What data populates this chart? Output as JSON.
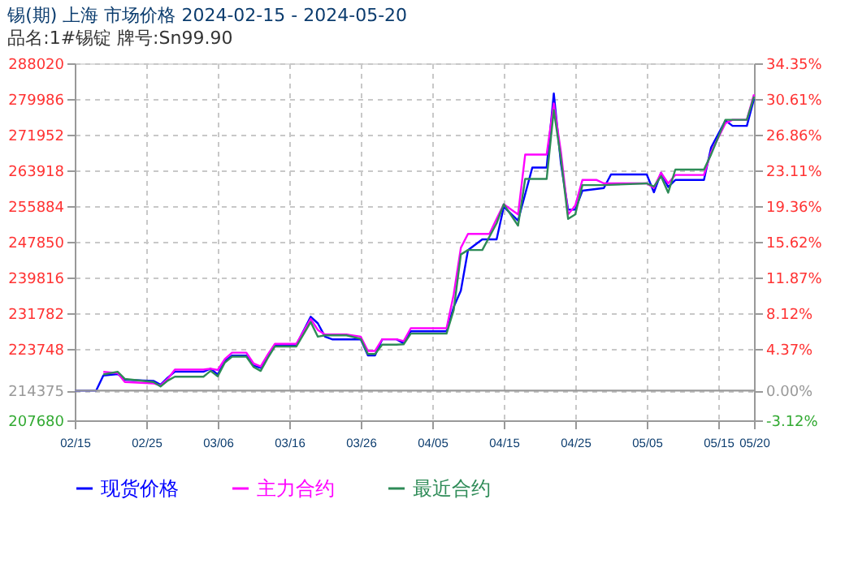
{
  "chart_data": {
    "type": "line",
    "title": "锡(期) 上海 市场价格 2024-02-15 - 2024-05-20",
    "subtitle": "品名:1#锡锭 牌号:Sn99.90",
    "xlim": [
      "2024-02-15",
      "2024-05-20"
    ],
    "xticks": [
      {
        "value": "2024-02-15",
        "label": "02/15"
      },
      {
        "value": "2024-02-25",
        "label": "02/25"
      },
      {
        "value": "2024-03-06",
        "label": "03/06"
      },
      {
        "value": "2024-03-16",
        "label": "03/16"
      },
      {
        "value": "2024-03-26",
        "label": "03/26"
      },
      {
        "value": "2024-04-05",
        "label": "04/05"
      },
      {
        "value": "2024-04-15",
        "label": "04/15"
      },
      {
        "value": "2024-04-25",
        "label": "04/25"
      },
      {
        "value": "2024-05-05",
        "label": "05/05"
      },
      {
        "value": "2024-05-15",
        "label": "05/15"
      },
      {
        "value": "2024-05-20",
        "label": "05/20"
      }
    ],
    "ylim": [
      207680,
      288020
    ],
    "yticks": [
      207680,
      214375,
      223748,
      231782,
      239816,
      247850,
      255884,
      263918,
      271952,
      279986,
      288020
    ],
    "y2lim": [
      -3.12,
      34.35
    ],
    "y2ticks": [
      {
        "value": -3.12,
        "label": "-3.12%"
      },
      {
        "value": 0,
        "label": "0.00%"
      },
      {
        "value": 4.37,
        "label": "4.37%"
      },
      {
        "value": 8.12,
        "label": "8.12%"
      },
      {
        "value": 11.87,
        "label": "11.87%"
      },
      {
        "value": 15.62,
        "label": "15.62%"
      },
      {
        "value": 19.36,
        "label": "19.36%"
      },
      {
        "value": 23.11,
        "label": "23.11%"
      },
      {
        "value": 26.86,
        "label": "26.86%"
      },
      {
        "value": 30.61,
        "label": "30.61%"
      },
      {
        "value": 34.35,
        "label": "34.35%"
      }
    ],
    "ref_lines": [
      {
        "axis": "y",
        "value": 214375,
        "color": "#999999"
      }
    ],
    "grid": true,
    "legend": "bottom",
    "marker": "none",
    "line_style": "solid",
    "series": [
      {
        "name": "现货价格",
        "color": "#0000ff",
        "x": [
          "2024-02-15",
          "2024-02-18",
          "2024-02-19",
          "2024-02-21",
          "2024-02-22",
          "2024-02-26",
          "2024-02-27",
          "2024-02-28",
          "2024-02-29",
          "2024-03-04",
          "2024-03-05",
          "2024-03-06",
          "2024-03-07",
          "2024-03-08",
          "2024-03-10",
          "2024-03-11",
          "2024-03-12",
          "2024-03-13",
          "2024-03-14",
          "2024-03-17",
          "2024-03-19",
          "2024-03-20",
          "2024-03-21",
          "2024-03-22",
          "2024-03-26",
          "2024-03-27",
          "2024-03-28",
          "2024-03-29",
          "2024-03-31",
          "2024-04-01",
          "2024-04-02",
          "2024-04-07",
          "2024-04-08",
          "2024-04-09",
          "2024-04-10",
          "2024-04-12",
          "2024-04-14",
          "2024-04-15",
          "2024-04-17",
          "2024-04-19",
          "2024-04-21",
          "2024-04-22",
          "2024-04-23",
          "2024-04-24",
          "2024-04-25",
          "2024-04-26",
          "2024-04-29",
          "2024-04-30",
          "2024-05-05",
          "2024-05-06",
          "2024-05-07",
          "2024-05-08",
          "2024-05-09",
          "2024-05-13",
          "2024-05-14",
          "2024-05-16",
          "2024-05-17",
          "2024-05-19",
          "2024-05-20"
        ],
        "values": [
          214375,
          214375,
          217780,
          218100,
          216800,
          216550,
          215700,
          217300,
          218620,
          218620,
          219300,
          218000,
          221000,
          222270,
          222270,
          220000,
          219500,
          222270,
          224710,
          224710,
          231000,
          229500,
          226500,
          225900,
          225900,
          222270,
          222270,
          225910,
          225910,
          225000,
          227730,
          227730,
          233200,
          236850,
          245970,
          248410,
          248410,
          255710,
          252640,
          264570,
          264570,
          281240,
          265410,
          255090,
          255090,
          259350,
          259940,
          263000,
          263000,
          258990,
          263370,
          260190,
          261760,
          261760,
          269060,
          275150,
          273940,
          273940,
          280000
        ]
      },
      {
        "name": "主力合约",
        "color": "#ff00ff",
        "x": [
          "2024-02-19",
          "2024-02-21",
          "2024-02-22",
          "2024-02-26",
          "2024-02-27",
          "2024-02-28",
          "2024-02-29",
          "2024-03-04",
          "2024-03-05",
          "2024-03-06",
          "2024-03-07",
          "2024-03-08",
          "2024-03-10",
          "2024-03-11",
          "2024-03-12",
          "2024-03-13",
          "2024-03-14",
          "2024-03-17",
          "2024-03-19",
          "2024-03-20",
          "2024-03-21",
          "2024-03-24",
          "2024-03-26",
          "2024-03-27",
          "2024-03-28",
          "2024-03-29",
          "2024-03-31",
          "2024-04-01",
          "2024-04-02",
          "2024-04-07",
          "2024-04-08",
          "2024-04-09",
          "2024-04-10",
          "2024-04-13",
          "2024-04-14",
          "2024-04-15",
          "2024-04-17",
          "2024-04-18",
          "2024-04-21",
          "2024-04-22",
          "2024-04-23",
          "2024-04-24",
          "2024-04-25",
          "2024-04-26",
          "2024-04-28",
          "2024-04-29",
          "2024-05-05",
          "2024-05-06",
          "2024-05-07",
          "2024-05-08",
          "2024-05-09",
          "2024-05-13",
          "2024-05-14",
          "2024-05-16",
          "2024-05-17",
          "2024-05-19",
          "2024-05-20"
        ],
        "values": [
          218600,
          218300,
          216300,
          216000,
          215500,
          217000,
          219100,
          219100,
          219300,
          219000,
          221500,
          222900,
          222900,
          220500,
          219800,
          222500,
          224900,
          224900,
          230500,
          228000,
          227000,
          227000,
          226500,
          223300,
          223300,
          225910,
          225910,
          225500,
          228400,
          228400,
          236000,
          246500,
          249620,
          249620,
          253000,
          256300,
          254000,
          267490,
          267490,
          279000,
          268000,
          254000,
          256000,
          261760,
          261760,
          261000,
          261000,
          260000,
          263400,
          261000,
          262900,
          262900,
          268000,
          274500,
          275300,
          275300,
          281000
        ]
      },
      {
        "name": "最近合约",
        "color": "#2e8b57",
        "x": [
          "2024-02-19",
          "2024-02-21",
          "2024-02-22",
          "2024-02-26",
          "2024-02-27",
          "2024-02-28",
          "2024-02-29",
          "2024-03-04",
          "2024-03-05",
          "2024-03-06",
          "2024-03-07",
          "2024-03-08",
          "2024-03-10",
          "2024-03-11",
          "2024-03-12",
          "2024-03-13",
          "2024-03-14",
          "2024-03-17",
          "2024-03-19",
          "2024-03-20",
          "2024-03-21",
          "2024-03-24",
          "2024-03-26",
          "2024-03-27",
          "2024-03-28",
          "2024-03-29",
          "2024-03-31",
          "2024-04-01",
          "2024-04-02",
          "2024-04-07",
          "2024-04-08",
          "2024-04-09",
          "2024-04-10",
          "2024-04-12",
          "2024-04-14",
          "2024-04-15",
          "2024-04-17",
          "2024-04-18",
          "2024-04-21",
          "2024-04-22",
          "2024-04-23",
          "2024-04-24",
          "2024-04-25",
          "2024-04-26",
          "2024-04-29",
          "2024-05-05",
          "2024-05-06",
          "2024-05-07",
          "2024-05-08",
          "2024-05-09",
          "2024-05-13",
          "2024-05-14",
          "2024-05-16",
          "2024-05-17",
          "2024-05-19",
          "2024-05-20"
        ],
        "values": [
          218000,
          218600,
          217000,
          216300,
          215300,
          216600,
          217500,
          217500,
          218800,
          217600,
          220700,
          222000,
          222000,
          219700,
          218800,
          221700,
          224300,
          224300,
          229800,
          226500,
          226800,
          226800,
          226000,
          222600,
          222600,
          224700,
          224700,
          224800,
          227200,
          227200,
          232500,
          245000,
          246000,
          246000,
          252000,
          256300,
          251500,
          262000,
          262000,
          277500,
          266500,
          253000,
          254000,
          260600,
          260600,
          261000,
          260300,
          262600,
          258900,
          264100,
          264100,
          267500,
          275300,
          275300,
          275300,
          280500
        ]
      }
    ]
  }
}
